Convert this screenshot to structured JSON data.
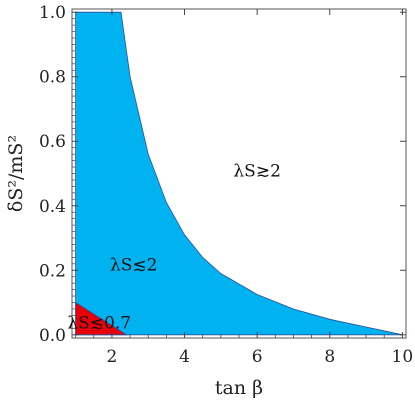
{
  "chart_data": {
    "type": "area",
    "xlabel": "tan β",
    "ylabel": "δS²/mS²",
    "xlim": [
      0.9,
      10.1
    ],
    "ylim": [
      -0.01,
      1.01
    ],
    "x_ticks": [
      2,
      4,
      6,
      8,
      10
    ],
    "x_tick_labels": [
      "2",
      "4",
      "6",
      "8",
      "10"
    ],
    "y_ticks": [
      0.0,
      0.2,
      0.4,
      0.6,
      0.8,
      1.0
    ],
    "y_tick_labels": [
      "0.0",
      "0.2",
      "0.4",
      "0.6",
      "0.8",
      "1.0"
    ],
    "grid": false,
    "series": [
      {
        "color": "#00b3f0",
        "x": [
          1.0,
          2.25,
          2.5,
          3.0,
          3.5,
          4.0,
          4.5,
          5.0,
          6.0,
          7.0,
          8.0,
          9.0,
          10.0
        ],
        "y": [
          1.0,
          1.0,
          0.8,
          0.56,
          0.41,
          0.31,
          0.24,
          0.19,
          0.125,
          0.08,
          0.048,
          0.024,
          0.0
        ],
        "floor": 0.0
      },
      {
        "color": "#e8000b",
        "x": [
          1.0,
          2.4
        ],
        "y": [
          0.1,
          0.0
        ],
        "floor": 0.0
      }
    ],
    "annotations": [
      {
        "text": "λS≳2",
        "x": 6.0,
        "y": 0.49
      },
      {
        "text": "λS≲2",
        "x": 2.6,
        "y": 0.2
      },
      {
        "text": "λS≲0.7",
        "x": 1.65,
        "y": 0.02
      }
    ]
  }
}
